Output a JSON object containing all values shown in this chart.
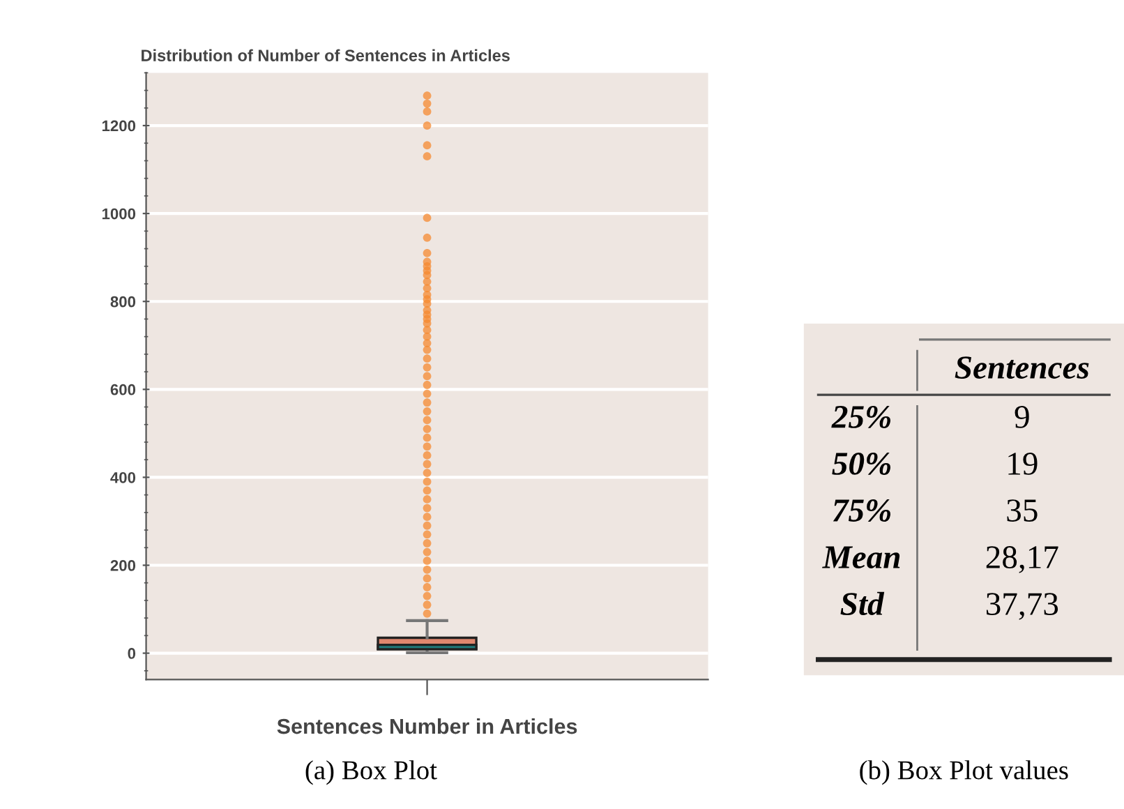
{
  "chart_data": [
    {
      "type": "box",
      "title": "Distribution of Number of Sentences in Articles",
      "categories": [
        "Sentences Number in Articles"
      ],
      "series": [
        {
          "type": "box",
          "color": "#e0876e",
          "boxes": [
            {
              "low": 1,
              "q1": 9,
              "median": 19,
              "q3": 35,
              "high": 74
            }
          ]
        },
        {
          "type": "scatter",
          "color": "#f58a30",
          "x": [
            "Sentences Number in Articles",
            "Sentences Number in Articles",
            "Sentences Number in Articles",
            "Sentences Number in Articles",
            "Sentences Number in Articles",
            "Sentences Number in Articles",
            "Sentences Number in Articles",
            "Sentences Number in Articles",
            "Sentences Number in Articles",
            "Sentences Number in Articles",
            "Sentences Number in Articles",
            "Sentences Number in Articles",
            "Sentences Number in Articles",
            "Sentences Number in Articles",
            "Sentences Number in Articles",
            "Sentences Number in Articles",
            "Sentences Number in Articles",
            "Sentences Number in Articles",
            "Sentences Number in Articles",
            "Sentences Number in Articles",
            "Sentences Number in Articles",
            "Sentences Number in Articles",
            "Sentences Number in Articles",
            "Sentences Number in Articles",
            "Sentences Number in Articles",
            "Sentences Number in Articles",
            "Sentences Number in Articles",
            "Sentences Number in Articles",
            "Sentences Number in Articles",
            "Sentences Number in Articles",
            "Sentences Number in Articles",
            "Sentences Number in Articles",
            "Sentences Number in Articles",
            "Sentences Number in Articles",
            "Sentences Number in Articles",
            "Sentences Number in Articles",
            "Sentences Number in Articles",
            "Sentences Number in Articles",
            "Sentences Number in Articles",
            "Sentences Number in Articles",
            "Sentences Number in Articles",
            "Sentences Number in Articles",
            "Sentences Number in Articles",
            "Sentences Number in Articles",
            "Sentences Number in Articles",
            "Sentences Number in Articles",
            "Sentences Number in Articles",
            "Sentences Number in Articles",
            "Sentences Number in Articles",
            "Sentences Number in Articles",
            "Sentences Number in Articles",
            "Sentences Number in Articles",
            "Sentences Number in Articles",
            "Sentences Number in Articles",
            "Sentences Number in Articles",
            "Sentences Number in Articles"
          ],
          "values": [
            90,
            110,
            130,
            150,
            170,
            190,
            210,
            230,
            250,
            270,
            290,
            310,
            330,
            350,
            370,
            390,
            410,
            430,
            450,
            470,
            490,
            510,
            530,
            550,
            570,
            590,
            610,
            630,
            650,
            670,
            690,
            705,
            720,
            735,
            750,
            760,
            770,
            780,
            795,
            805,
            815,
            830,
            845,
            860,
            870,
            880,
            890,
            910,
            945,
            990,
            1130,
            1155,
            1200,
            1232,
            1250,
            1268
          ]
        }
      ],
      "ylim": [
        -60,
        1320
      ],
      "yticks": [
        0,
        200,
        400,
        600,
        800,
        1000,
        1200
      ],
      "grid": "y",
      "marker": "circle",
      "annotations": [
        "(a) Box Plot"
      ]
    },
    {
      "type": "other",
      "categories": [
        "25%",
        "50%",
        "75%",
        "Mean",
        "Std"
      ],
      "series": [
        {
          "name": "Sentences",
          "values": [
            9,
            19,
            35,
            28.17,
            37.73
          ],
          "value_labels": [
            "9",
            "19",
            "35",
            "28,17",
            "37,73"
          ]
        }
      ],
      "annotations": [
        "(b) Box Plot values"
      ]
    }
  ]
}
